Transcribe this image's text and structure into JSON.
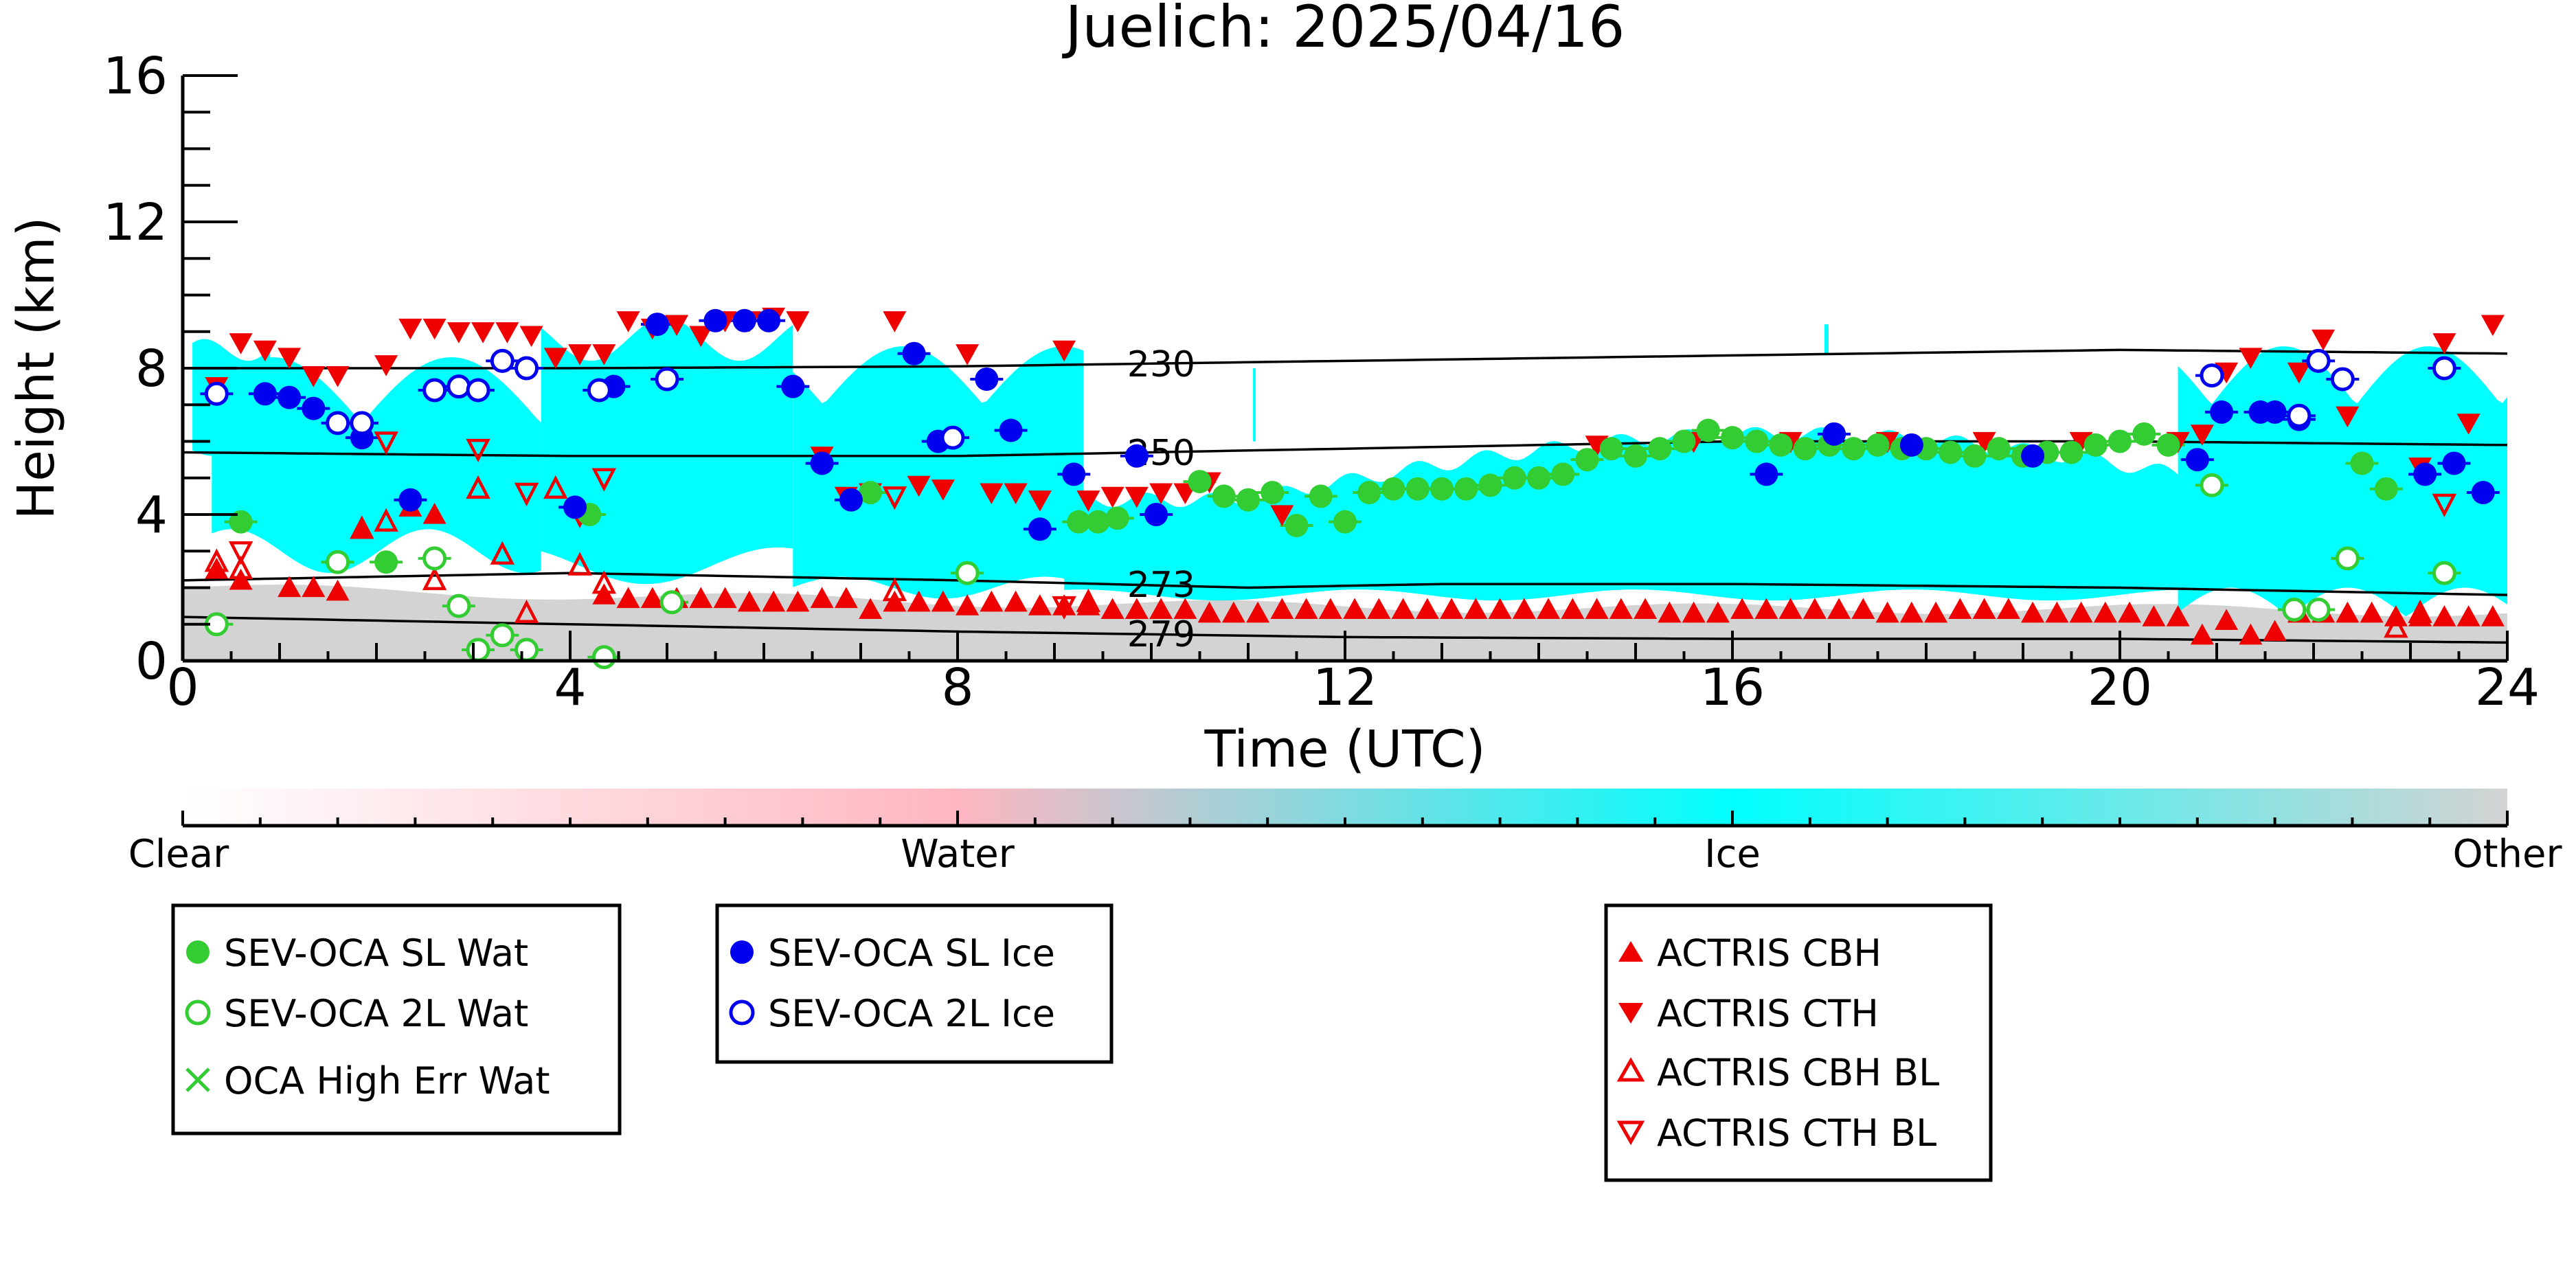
{
  "chart_data": {
    "type": "scatter",
    "title": "Juelich: 2025/04/16",
    "xlabel": "Time (UTC)",
    "ylabel": "Height (km)",
    "xlim": [
      0,
      24
    ],
    "ylim": [
      0,
      16
    ],
    "x_ticks": [
      "0",
      "4",
      "8",
      "12",
      "16",
      "20",
      "24"
    ],
    "y_ticks": [
      "0",
      "4",
      "8",
      "12",
      "16"
    ],
    "background": "cloud phase mask (clear / water / ice / other)",
    "isotherms": [
      {
        "label": "230",
        "points": [
          [
            0,
            8.0
          ],
          [
            4,
            8.0
          ],
          [
            8,
            8.05
          ],
          [
            12,
            8.2
          ],
          [
            16,
            8.35
          ],
          [
            20,
            8.5
          ],
          [
            24,
            8.4
          ]
        ]
      },
      {
        "label": "250",
        "points": [
          [
            0,
            5.7
          ],
          [
            4,
            5.6
          ],
          [
            8,
            5.6
          ],
          [
            12,
            5.8
          ],
          [
            16,
            6.0
          ],
          [
            20,
            6.0
          ],
          [
            24,
            5.9
          ]
        ]
      },
      {
        "label": "273",
        "points": [
          [
            0,
            2.2
          ],
          [
            4,
            2.4
          ],
          [
            8,
            2.2
          ],
          [
            11,
            2.0
          ],
          [
            13,
            2.1
          ],
          [
            16,
            2.1
          ],
          [
            20,
            2.0
          ],
          [
            24,
            1.8
          ]
        ]
      },
      {
        "label": "279",
        "points": [
          [
            0,
            1.2
          ],
          [
            4,
            1.0
          ],
          [
            8,
            0.8
          ],
          [
            12,
            0.65
          ],
          [
            16,
            0.6
          ],
          [
            20,
            0.6
          ],
          [
            24,
            0.5
          ]
        ]
      }
    ],
    "series": [
      {
        "name": "SEV-OCA SL Wat",
        "color": "#33cc33",
        "marker": "filled-circle",
        "x": [
          0.6,
          2.1,
          4.2,
          7.1,
          9.25,
          9.45,
          9.65,
          10.5,
          10.75,
          11.0,
          11.25,
          11.5,
          11.75,
          12.0,
          12.25,
          12.5,
          12.75,
          13.0,
          13.25,
          13.5,
          13.75,
          14.0,
          14.25,
          14.5,
          14.75,
          15.0,
          15.25,
          15.5,
          15.75,
          16.0,
          16.25,
          16.5,
          16.75,
          17.0,
          17.25,
          17.5,
          17.75,
          18.0,
          18.25,
          18.5,
          18.75,
          19.0,
          19.25,
          19.5,
          19.75,
          20.0,
          20.25,
          20.5,
          22.5,
          22.75
        ],
        "y": [
          3.8,
          2.7,
          4.0,
          4.6,
          3.8,
          3.8,
          3.9,
          4.9,
          4.5,
          4.4,
          4.6,
          3.7,
          4.5,
          3.8,
          4.6,
          4.7,
          4.7,
          4.7,
          4.7,
          4.8,
          5.0,
          5.0,
          5.1,
          5.5,
          5.8,
          5.6,
          5.8,
          6.0,
          6.3,
          6.1,
          6.0,
          5.9,
          5.8,
          5.9,
          5.8,
          5.9,
          5.8,
          5.8,
          5.7,
          5.6,
          5.8,
          5.6,
          5.7,
          5.7,
          5.9,
          6.0,
          6.2,
          5.9,
          5.4,
          4.7
        ]
      },
      {
        "name": "SEV-OCA 2L Wat",
        "color": "#33cc33",
        "marker": "open-circle",
        "x": [
          0.35,
          1.6,
          2.6,
          2.85,
          3.05,
          3.3,
          3.55,
          4.35,
          5.05,
          8.1,
          20.95,
          21.8,
          22.05,
          22.35,
          23.35
        ],
        "y": [
          1.0,
          2.7,
          2.8,
          1.5,
          0.3,
          0.7,
          0.3,
          0.1,
          1.6,
          2.4,
          4.8,
          1.4,
          1.4,
          2.8,
          2.4
        ]
      },
      {
        "name": "OCA High Err Wat",
        "color": "#33cc33",
        "marker": "x",
        "x": [],
        "y": []
      },
      {
        "name": "SEV-OCA SL Ice",
        "color": "#0000ee",
        "marker": "filled-circle",
        "x": [
          0.85,
          1.1,
          1.35,
          1.85,
          2.35,
          4.05,
          4.45,
          4.9,
          5.5,
          5.8,
          6.05,
          6.3,
          6.6,
          6.9,
          7.55,
          7.8,
          8.3,
          8.55,
          8.85,
          9.2,
          9.85,
          10.05,
          16.35,
          17.05,
          17.85,
          19.1,
          20.8,
          21.05,
          21.45,
          21.6,
          21.85,
          23.15,
          23.45,
          23.75
        ],
        "y": [
          7.3,
          7.2,
          6.9,
          6.1,
          4.4,
          4.2,
          7.5,
          9.2,
          9.3,
          9.3,
          9.3,
          7.5,
          5.4,
          4.4,
          8.4,
          6.0,
          7.7,
          6.3,
          3.6,
          5.1,
          5.6,
          4.0,
          5.1,
          6.2,
          5.9,
          5.6,
          5.5,
          6.8,
          6.8,
          6.8,
          6.6,
          5.1,
          5.4,
          4.6
        ]
      },
      {
        "name": "SEV-OCA 2L Ice",
        "color": "#0000ee",
        "marker": "open-circle",
        "x": [
          0.35,
          1.6,
          1.85,
          2.6,
          2.85,
          3.05,
          3.3,
          3.55,
          4.3,
          5.0,
          7.95,
          20.95,
          21.85,
          22.05,
          22.3,
          23.35
        ],
        "y": [
          7.3,
          6.5,
          6.5,
          7.4,
          7.5,
          7.4,
          8.2,
          8.0,
          7.4,
          7.7,
          6.1,
          7.8,
          6.7,
          8.2,
          7.7,
          8.0
        ]
      },
      {
        "name": "ACTRIS CBH",
        "color": "#ee0000",
        "marker": "filled-triangle-up",
        "x": [
          0.35,
          0.6,
          1.1,
          1.35,
          1.6,
          1.85,
          2.35,
          2.6,
          4.35,
          4.6,
          4.85,
          5.1,
          5.35,
          5.6,
          5.85,
          6.1,
          6.35,
          6.6,
          6.85,
          7.1,
          7.35,
          7.6,
          7.85,
          8.1,
          8.35,
          8.6,
          8.85,
          9.1,
          9.35,
          9.6,
          9.85,
          10.1,
          10.35,
          10.6,
          10.85,
          11.1,
          11.35,
          11.6,
          11.85,
          12.1,
          12.35,
          12.6,
          12.85,
          13.1,
          13.35,
          13.6,
          13.85,
          14.1,
          14.35,
          14.6,
          14.85,
          15.1,
          15.35,
          15.6,
          15.85,
          16.1,
          16.35,
          16.6,
          16.85,
          17.1,
          17.35,
          17.6,
          17.85,
          18.1,
          18.35,
          18.6,
          18.85,
          19.1,
          19.35,
          19.6,
          19.85,
          20.1,
          20.35,
          20.6,
          20.85,
          21.1,
          21.35,
          21.6,
          21.85,
          22.1,
          22.35,
          22.6,
          22.85,
          23.1,
          23.35,
          23.6,
          23.85
        ],
        "y": [
          2.5,
          2.2,
          2.0,
          2.0,
          1.9,
          3.6,
          4.2,
          4.0,
          1.8,
          1.7,
          1.7,
          1.7,
          1.7,
          1.7,
          1.6,
          1.6,
          1.6,
          1.7,
          1.7,
          1.4,
          1.6,
          1.6,
          1.6,
          1.5,
          1.6,
          1.6,
          1.5,
          1.5,
          1.5,
          1.4,
          1.4,
          1.4,
          1.4,
          1.3,
          1.3,
          1.3,
          1.4,
          1.4,
          1.4,
          1.4,
          1.4,
          1.4,
          1.4,
          1.4,
          1.4,
          1.4,
          1.4,
          1.4,
          1.4,
          1.4,
          1.4,
          1.4,
          1.3,
          1.3,
          1.3,
          1.4,
          1.4,
          1.4,
          1.4,
          1.4,
          1.4,
          1.3,
          1.3,
          1.3,
          1.4,
          1.4,
          1.4,
          1.3,
          1.3,
          1.3,
          1.3,
          1.3,
          1.2,
          1.2,
          0.7,
          1.1,
          0.7,
          0.8,
          1.3,
          1.3,
          1.3,
          1.3,
          1.2,
          1.2,
          1.2,
          1.2,
          1.2
        ]
      },
      {
        "name": "ACTRIS CTH",
        "color": "#ee0000",
        "marker": "filled-triangle-down",
        "x": [
          0.35,
          0.6,
          0.85,
          1.1,
          1.35,
          1.6,
          2.1,
          2.35,
          2.6,
          2.85,
          3.1,
          3.35,
          3.6,
          3.85,
          4.1,
          4.35,
          4.6,
          4.85,
          5.1,
          5.35,
          5.6,
          5.85,
          6.1,
          6.35,
          6.6,
          6.85,
          7.1,
          7.35,
          7.6,
          7.85,
          8.1,
          8.35,
          8.6,
          8.85,
          9.1,
          9.35,
          9.6,
          9.85,
          10.1,
          10.35,
          10.6,
          11.35,
          14.6,
          15.6,
          16.6,
          17.6,
          18.6,
          19.6,
          20.6,
          20.85,
          21.1,
          21.35,
          21.85,
          22.1,
          22.35,
          23.1,
          23.35,
          23.6,
          23.85
        ],
        "y": [
          7.5,
          8.7,
          8.5,
          8.3,
          7.8,
          7.8,
          8.1,
          9.1,
          9.1,
          9.0,
          9.0,
          9.0,
          8.9,
          8.3,
          8.4,
          8.4,
          9.3,
          9.1,
          9.2,
          8.9,
          9.3,
          9.3,
          9.4,
          9.3,
          5.6,
          4.5,
          4.6,
          9.3,
          4.8,
          4.7,
          8.4,
          4.6,
          4.6,
          4.4,
          8.5,
          4.4,
          4.5,
          4.5,
          4.6,
          4.6,
          4.9,
          4.0,
          5.9,
          6.0,
          6.0,
          6.0,
          6.0,
          6.0,
          6.0,
          6.2,
          7.9,
          8.3,
          7.9,
          8.8,
          6.7,
          5.3,
          8.7,
          6.5,
          9.2
        ]
      },
      {
        "name": "ACTRIS CBH BL",
        "color": "#ee0000",
        "marker": "open-triangle-up",
        "x": [
          0.35,
          0.6,
          1.85,
          2.1,
          2.6,
          3.05,
          3.3,
          3.55,
          3.85,
          4.1,
          4.35,
          7.35,
          9.35,
          22.85,
          23.1
        ],
        "y": [
          2.7,
          2.5,
          3.6,
          3.8,
          2.2,
          4.7,
          2.9,
          1.3,
          4.7,
          2.6,
          2.1,
          1.9,
          1.6,
          0.9,
          1.3
        ]
      },
      {
        "name": "ACTRIS CTH BL",
        "color": "#ee0000",
        "marker": "open-triangle-down",
        "x": [
          0.6,
          2.1,
          3.05,
          3.55,
          4.1,
          4.35,
          7.35,
          9.1,
          23.35
        ],
        "y": [
          3.0,
          6.0,
          5.8,
          4.6,
          4.0,
          5.0,
          4.5,
          1.5,
          4.3
        ]
      }
    ],
    "colorbar": {
      "labels": [
        "Clear",
        "Water",
        "Ice",
        "Other"
      ],
      "colors": [
        "#ffffff",
        "#ffb6c1",
        "#00ffff",
        "#d3d3d3"
      ]
    },
    "legend": [
      {
        "group": 1,
        "entries": [
          "SEV-OCA SL Wat",
          "SEV-OCA 2L Wat",
          "OCA High Err Wat"
        ]
      },
      {
        "group": 2,
        "entries": [
          "SEV-OCA SL Ice",
          "SEV-OCA 2L Ice"
        ]
      },
      {
        "group": 3,
        "entries": [
          "ACTRIS CBH",
          "ACTRIS CTH",
          "ACTRIS CBH BL",
          "ACTRIS CTH BL"
        ]
      }
    ],
    "legend_placement": "below"
  }
}
